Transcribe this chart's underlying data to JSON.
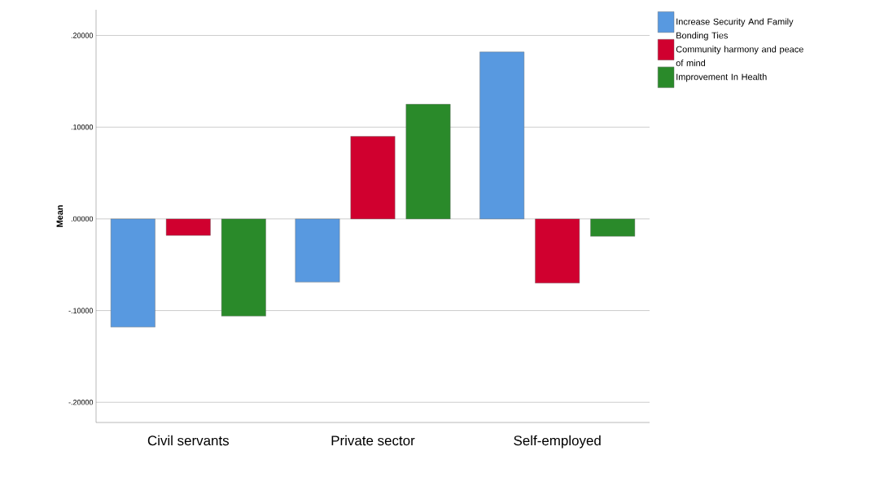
{
  "chart_data": {
    "type": "bar",
    "ylabel": "Mean",
    "categories": [
      "Civil servants",
      "Private sector",
      "Self-employed"
    ],
    "series": [
      {
        "name": "Increase Security And Family Bonding Ties",
        "color": "#5899e0",
        "values": [
          -0.118,
          -0.069,
          0.182
        ]
      },
      {
        "name": "Community harmony and peace of mind",
        "color": "#d0002f",
        "values": [
          -0.018,
          0.09,
          -0.07
        ]
      },
      {
        "name": "Improvement In Health",
        "color": "#2a8a2a",
        "values": [
          -0.106,
          0.125,
          -0.019
        ]
      }
    ],
    "ylim": [
      -0.222,
      0.228
    ],
    "yticks": [
      {
        "value": -0.2,
        "label": "-.20000"
      },
      {
        "value": -0.1,
        "label": "-.10000"
      },
      {
        "value": 0,
        "label": ".00000"
      },
      {
        "value": 0.1,
        "label": ".10000"
      },
      {
        "value": 0.2,
        "label": ".20000"
      }
    ],
    "grid": "y",
    "legend": "top right"
  }
}
